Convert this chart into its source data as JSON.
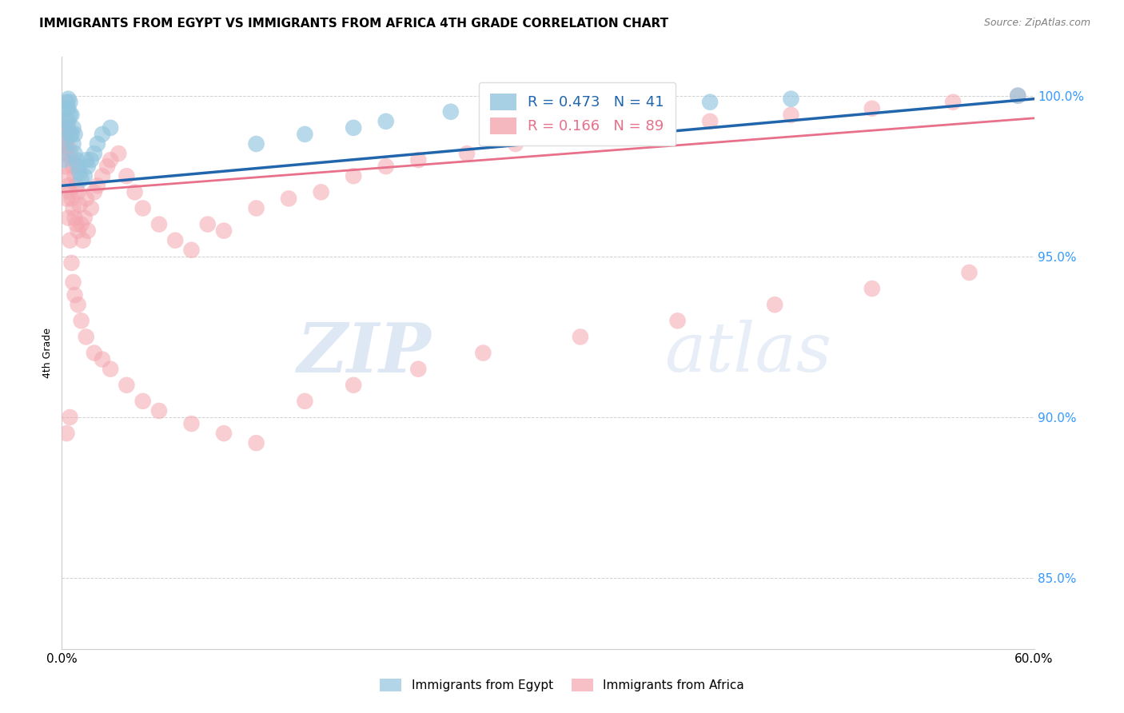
{
  "title": "IMMIGRANTS FROM EGYPT VS IMMIGRANTS FROM AFRICA 4TH GRADE CORRELATION CHART",
  "source": "Source: ZipAtlas.com",
  "ylabel": "4th Grade",
  "ytick_values": [
    1.0,
    0.95,
    0.9,
    0.85
  ],
  "xlim": [
    0.0,
    0.6
  ],
  "ylim": [
    0.828,
    1.012
  ],
  "legend_egypt": "Immigrants from Egypt",
  "legend_africa": "Immigrants from Africa",
  "R_egypt": 0.473,
  "N_egypt": 41,
  "R_africa": 0.166,
  "N_africa": 89,
  "egypt_color": "#92c5de",
  "africa_color": "#f4a6b0",
  "egypt_line_color": "#2166ac",
  "africa_line_color": "#e8708a",
  "egypt_line_x0": 0.0,
  "egypt_line_y0": 0.972,
  "egypt_line_x1": 0.6,
  "egypt_line_y1": 0.999,
  "africa_line_x0": 0.0,
  "africa_line_y0": 0.97,
  "africa_line_x1": 0.6,
  "africa_line_y1": 0.993,
  "egypt_x": [
    0.001,
    0.002,
    0.002,
    0.003,
    0.003,
    0.003,
    0.004,
    0.004,
    0.004,
    0.005,
    0.005,
    0.005,
    0.006,
    0.006,
    0.007,
    0.007,
    0.008,
    0.008,
    0.009,
    0.01,
    0.011,
    0.012,
    0.014,
    0.015,
    0.016,
    0.018,
    0.02,
    0.022,
    0.025,
    0.03,
    0.12,
    0.15,
    0.18,
    0.2,
    0.24,
    0.28,
    0.32,
    0.35,
    0.4,
    0.45,
    0.59
  ],
  "egypt_y": [
    0.98,
    0.985,
    0.99,
    0.992,
    0.996,
    0.998,
    0.992,
    0.996,
    0.999,
    0.988,
    0.994,
    0.998,
    0.988,
    0.994,
    0.985,
    0.99,
    0.982,
    0.988,
    0.98,
    0.978,
    0.976,
    0.974,
    0.975,
    0.98,
    0.978,
    0.98,
    0.982,
    0.985,
    0.988,
    0.99,
    0.985,
    0.988,
    0.99,
    0.992,
    0.995,
    0.996,
    0.997,
    0.998,
    0.998,
    0.999,
    1.0
  ],
  "africa_x": [
    0.001,
    0.001,
    0.002,
    0.002,
    0.002,
    0.003,
    0.003,
    0.003,
    0.004,
    0.004,
    0.004,
    0.005,
    0.005,
    0.005,
    0.006,
    0.006,
    0.007,
    0.007,
    0.008,
    0.008,
    0.009,
    0.009,
    0.01,
    0.01,
    0.011,
    0.012,
    0.013,
    0.014,
    0.015,
    0.016,
    0.018,
    0.02,
    0.022,
    0.025,
    0.028,
    0.03,
    0.035,
    0.04,
    0.045,
    0.05,
    0.06,
    0.07,
    0.08,
    0.09,
    0.1,
    0.12,
    0.14,
    0.16,
    0.18,
    0.2,
    0.22,
    0.25,
    0.28,
    0.32,
    0.36,
    0.4,
    0.45,
    0.5,
    0.55,
    0.59,
    0.003,
    0.004,
    0.005,
    0.006,
    0.007,
    0.008,
    0.01,
    0.012,
    0.015,
    0.02,
    0.025,
    0.03,
    0.04,
    0.05,
    0.06,
    0.08,
    0.1,
    0.12,
    0.15,
    0.18,
    0.22,
    0.26,
    0.32,
    0.38,
    0.44,
    0.5,
    0.56,
    0.003,
    0.005
  ],
  "africa_y": [
    0.982,
    0.988,
    0.984,
    0.99,
    0.978,
    0.986,
    0.992,
    0.975,
    0.984,
    0.99,
    0.972,
    0.982,
    0.988,
    0.97,
    0.98,
    0.968,
    0.978,
    0.965,
    0.975,
    0.962,
    0.972,
    0.96,
    0.97,
    0.958,
    0.966,
    0.96,
    0.955,
    0.962,
    0.968,
    0.958,
    0.965,
    0.97,
    0.972,
    0.975,
    0.978,
    0.98,
    0.982,
    0.975,
    0.97,
    0.965,
    0.96,
    0.955,
    0.952,
    0.96,
    0.958,
    0.965,
    0.968,
    0.97,
    0.975,
    0.978,
    0.98,
    0.982,
    0.985,
    0.988,
    0.99,
    0.992,
    0.994,
    0.996,
    0.998,
    1.0,
    0.968,
    0.962,
    0.955,
    0.948,
    0.942,
    0.938,
    0.935,
    0.93,
    0.925,
    0.92,
    0.918,
    0.915,
    0.91,
    0.905,
    0.902,
    0.898,
    0.895,
    0.892,
    0.905,
    0.91,
    0.915,
    0.92,
    0.925,
    0.93,
    0.935,
    0.94,
    0.945,
    0.895,
    0.9
  ]
}
